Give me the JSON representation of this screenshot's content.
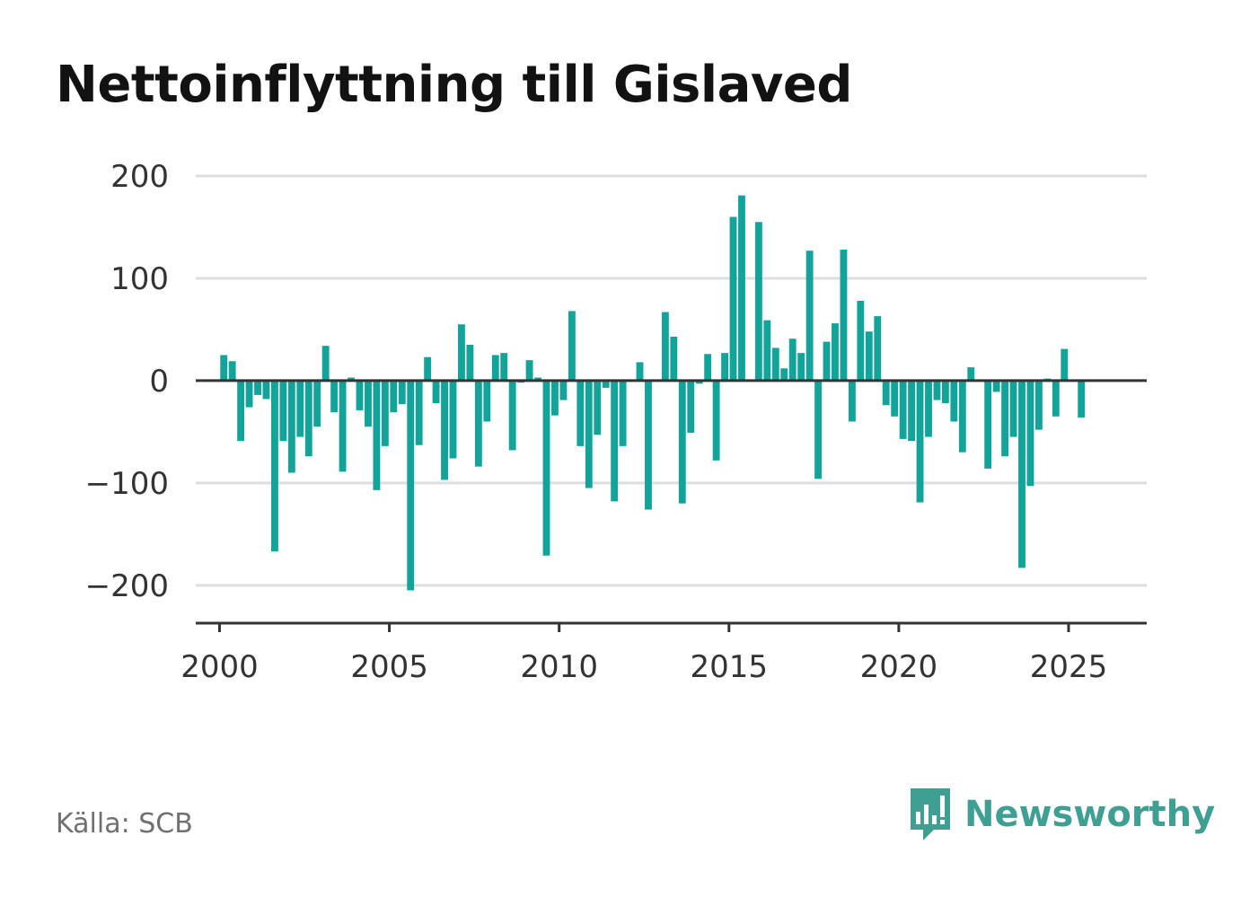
{
  "chart_data": {
    "type": "bar",
    "title": "Nettoinflyttning till Gislaved",
    "xlabel": "",
    "ylabel": "",
    "x_ticks": [
      "2000",
      "2005",
      "2010",
      "2015",
      "2020",
      "2025"
    ],
    "y_ticks": [
      "200",
      "100",
      "0",
      "−100",
      "−200"
    ],
    "ylim": [
      -237,
      200
    ],
    "xlim": [
      1999.3,
      2027.3
    ],
    "grid": true,
    "legend": "none",
    "bar_color": "#12a39a",
    "series": [
      {
        "x": [
          2000.125,
          2000.375,
          2000.625,
          2000.875,
          2001.125,
          2001.375,
          2001.625,
          2001.875,
          2002.125,
          2002.375,
          2002.625,
          2002.875,
          2003.125,
          2003.375,
          2003.625,
          2003.875,
          2004.125,
          2004.375,
          2004.625,
          2004.875,
          2005.125,
          2005.375,
          2005.625,
          2005.875,
          2006.125,
          2006.375,
          2006.625,
          2006.875,
          2007.125,
          2007.375,
          2007.625,
          2007.875,
          2008.125,
          2008.375,
          2008.625,
          2008.875,
          2009.125,
          2009.375,
          2009.625,
          2009.875,
          2010.125,
          2010.375,
          2010.625,
          2010.875,
          2011.125,
          2011.375,
          2011.625,
          2011.875,
          2012.125,
          2012.375,
          2012.625,
          2012.875,
          2013.125,
          2013.375,
          2013.625,
          2013.875,
          2014.125,
          2014.375,
          2014.625,
          2014.875,
          2015.125,
          2015.375,
          2015.625,
          2015.875,
          2016.125,
          2016.375,
          2016.625,
          2016.875,
          2017.125,
          2017.375,
          2017.625,
          2017.875,
          2018.125,
          2018.375,
          2018.625,
          2018.875,
          2019.125,
          2019.375,
          2019.625,
          2019.875,
          2020.125,
          2020.375,
          2020.625,
          2020.875,
          2021.125,
          2021.375,
          2021.625,
          2021.875,
          2022.125,
          2022.375,
          2022.625,
          2022.875,
          2023.125,
          2023.375,
          2023.625,
          2023.875,
          2024.125,
          2024.375,
          2024.625,
          2024.875,
          2025.125,
          2025.375
        ],
        "values": [
          25,
          19,
          -59,
          -26,
          -14,
          -18,
          -167,
          -59,
          -90,
          -55,
          -74,
          -45,
          34,
          -31,
          -89,
          3,
          -29,
          -45,
          -107,
          -64,
          -31,
          -23,
          -205,
          -63,
          23,
          -22,
          -97,
          -76,
          55,
          35,
          -84,
          -40,
          25,
          27,
          -68,
          -2,
          20,
          3,
          -171,
          -34,
          -19,
          68,
          -64,
          -105,
          -53,
          -7,
          -118,
          -64,
          0,
          18,
          -126,
          0,
          67,
          43,
          -120,
          -51,
          -3,
          26,
          -78,
          27,
          160,
          181,
          0,
          155,
          59,
          32,
          12,
          41,
          27,
          127,
          -96,
          38,
          56,
          128,
          -40,
          78,
          48,
          63,
          -24,
          -35,
          -57,
          -59,
          -119,
          -55,
          -19,
          -22,
          -40,
          -70,
          13,
          0,
          -86,
          -11,
          -74,
          -55,
          -183,
          -103,
          -48,
          2,
          -35,
          31,
          0,
          -36
        ]
      }
    ]
  },
  "footer": {
    "source": "Källa: SCB",
    "brand": "Newsworthy",
    "brand_icon": "newsworthy-logo-icon"
  }
}
